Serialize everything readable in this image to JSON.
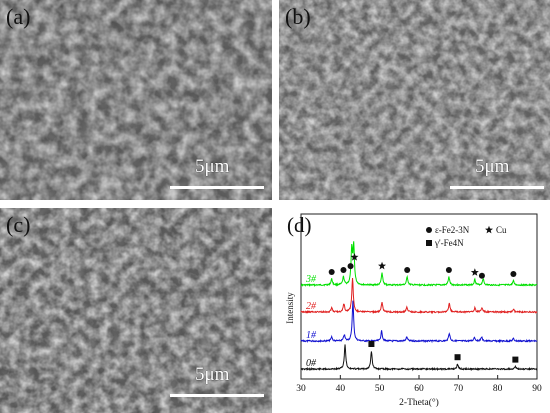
{
  "panels": {
    "a": {
      "label": "(a)",
      "scale_bar": "5μm"
    },
    "b": {
      "label": "(b)",
      "scale_bar": "5μm"
    },
    "c": {
      "label": "(c)",
      "scale_bar": "5μm"
    },
    "d": {
      "label": "(d)"
    }
  },
  "chart_data": {
    "type": "line",
    "title": "",
    "xlabel": "2-Theta(°)",
    "ylabel": "Intensity",
    "xlim": [
      30,
      90
    ],
    "xticks": [
      30,
      40,
      50,
      60,
      70,
      80,
      90
    ],
    "legend": [
      {
        "marker": "circle",
        "text": "ε-Fe2-3N"
      },
      {
        "marker": "star",
        "text": "Cu"
      },
      {
        "marker": "square",
        "text": "γ'-Fe4N"
      }
    ],
    "legend_position": "top-right",
    "series": [
      {
        "name": "3#",
        "color": "#00e000",
        "offset": 3,
        "peaks": [
          [
            37.8,
            0.15
          ],
          [
            40.8,
            0.2
          ],
          [
            42.9,
            0.85
          ],
          [
            43.4,
            0.95
          ],
          [
            50.6,
            0.3
          ],
          [
            57.0,
            0.2
          ],
          [
            67.6,
            0.2
          ],
          [
            74.2,
            0.14
          ],
          [
            76.3,
            0.16
          ],
          [
            84.0,
            0.1
          ]
        ]
      },
      {
        "name": "2#",
        "color": "#e02020",
        "offset": 2,
        "peaks": [
          [
            37.8,
            0.1
          ],
          [
            40.9,
            0.2
          ],
          [
            43.1,
            0.85
          ],
          [
            50.6,
            0.25
          ],
          [
            56.9,
            0.12
          ],
          [
            67.7,
            0.22
          ],
          [
            74.2,
            0.1
          ],
          [
            76.0,
            0.1
          ],
          [
            84.0,
            0.07
          ]
        ]
      },
      {
        "name": "1#",
        "color": "#1010d0",
        "offset": 1,
        "peaks": [
          [
            37.8,
            0.1
          ],
          [
            41.0,
            0.15
          ],
          [
            43.2,
            1.0
          ],
          [
            50.5,
            0.25
          ],
          [
            56.9,
            0.1
          ],
          [
            67.7,
            0.2
          ],
          [
            74.1,
            0.1
          ],
          [
            75.9,
            0.1
          ],
          [
            84.0,
            0.06
          ]
        ]
      },
      {
        "name": "0#",
        "color": "#111111",
        "offset": 0,
        "peaks": [
          [
            41.2,
            0.6
          ],
          [
            47.9,
            0.45
          ],
          [
            69.8,
            0.12
          ],
          [
            84.5,
            0.06
          ]
        ]
      }
    ],
    "phase_markers": [
      {
        "phase": "circle",
        "x": 37.8,
        "series": "3#"
      },
      {
        "phase": "circle",
        "x": 40.8,
        "series": "3#"
      },
      {
        "phase": "circle",
        "x": 42.6,
        "series": "3#"
      },
      {
        "phase": "star",
        "x": 43.6,
        "series": "3#"
      },
      {
        "phase": "star",
        "x": 50.6,
        "series": "3#"
      },
      {
        "phase": "circle",
        "x": 57.0,
        "series": "3#"
      },
      {
        "phase": "circle",
        "x": 67.6,
        "series": "3#"
      },
      {
        "phase": "star",
        "x": 74.2,
        "series": "3#"
      },
      {
        "phase": "circle",
        "x": 76.0,
        "series": "3#"
      },
      {
        "phase": "circle",
        "x": 84.0,
        "series": "3#"
      },
      {
        "phase": "square",
        "x": 47.9,
        "series": "0#"
      },
      {
        "phase": "square",
        "x": 69.8,
        "series": "0#"
      },
      {
        "phase": "square",
        "x": 84.5,
        "series": "0#"
      }
    ]
  }
}
